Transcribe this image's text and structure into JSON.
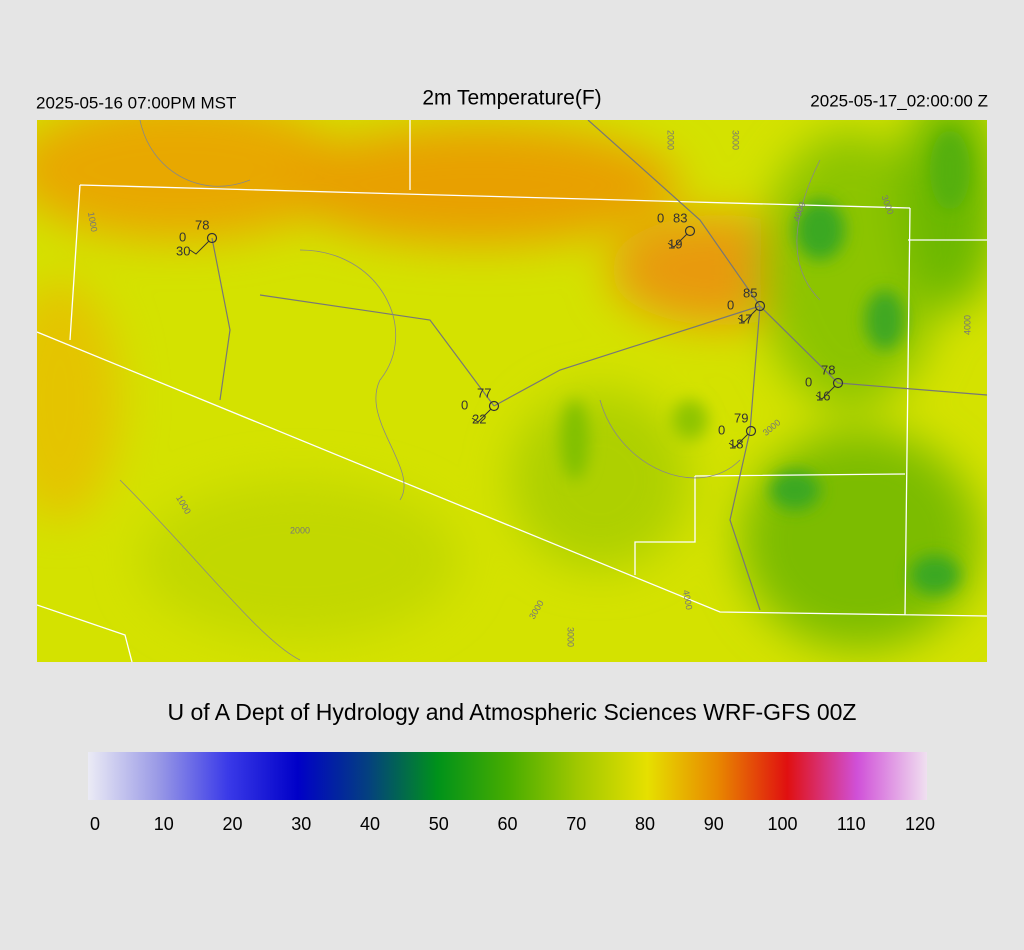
{
  "header": {
    "title": "2m Temperature(F)",
    "local_time": "2025-05-16 07:00PM MST",
    "utc_time": "2025-05-17_02:00:00 Z"
  },
  "map": {
    "stations": [
      {
        "temp": "78",
        "dew": "0",
        "wind": "30"
      },
      {
        "temp": "83",
        "dew": "0",
        "wind": "19"
      },
      {
        "temp": "85",
        "dew": "0",
        "wind": "17"
      },
      {
        "temp": "78",
        "dew": "0",
        "wind": "16"
      },
      {
        "temp": "77",
        "dew": "0",
        "wind": "22"
      },
      {
        "temp": "79",
        "dew": "0",
        "wind": "18"
      }
    ],
    "contour_labels": [
      "2000",
      "3000",
      "1000",
      "4000",
      "3000",
      "4000",
      "3000",
      "1000",
      "2000",
      "3000",
      "3000",
      "4000"
    ]
  },
  "credit": "U of A Dept of Hydrology and Atmospheric Sciences WRF-GFS 00Z",
  "colorbar": {
    "ticks": [
      0,
      10,
      20,
      30,
      40,
      50,
      60,
      70,
      80,
      90,
      100,
      110,
      120
    ],
    "colors": [
      "#ebebf5",
      "#9a9ae6",
      "#3a3ae8",
      "#0000c8",
      "#044080",
      "#00921a",
      "#46ac00",
      "#a0c800",
      "#e6e000",
      "#e88800",
      "#e01010",
      "#d050d8",
      "#f0e0f0"
    ]
  }
}
